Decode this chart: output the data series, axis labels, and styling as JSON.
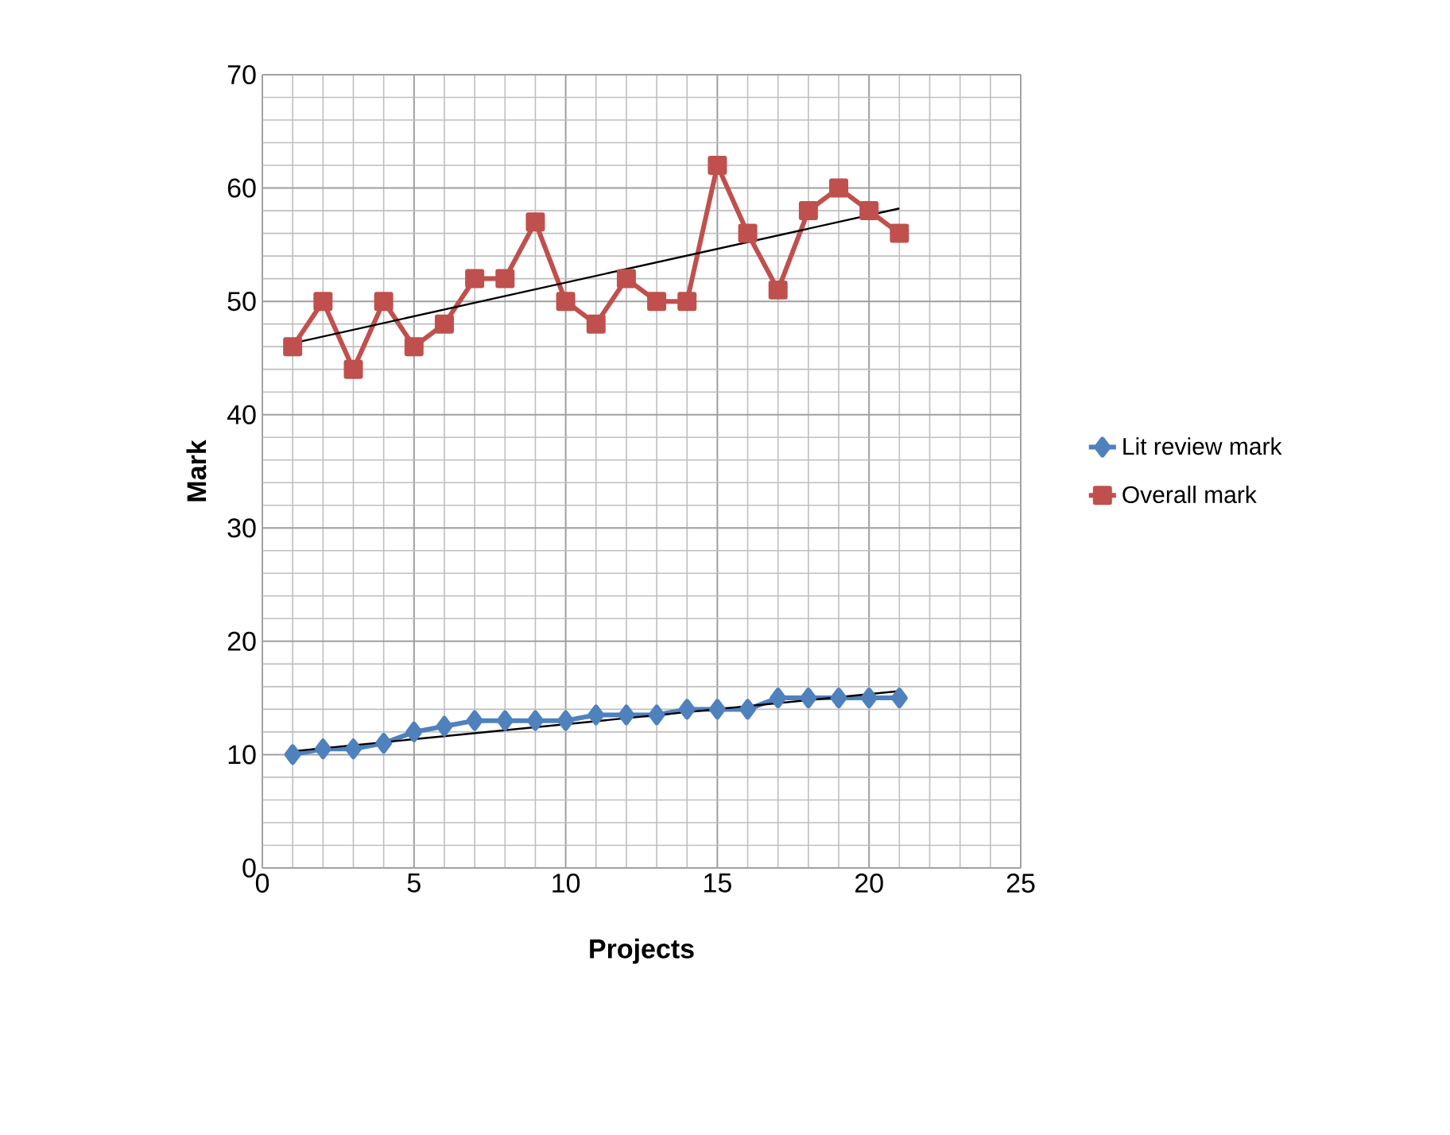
{
  "chart_data": {
    "type": "line",
    "xlabel": "Projects",
    "ylabel": "Mark",
    "xlim": [
      0,
      25
    ],
    "xticks": [
      0,
      5,
      10,
      15,
      20,
      25
    ],
    "ylim": [
      0,
      70
    ],
    "yticks": [
      0,
      10,
      20,
      30,
      40,
      50,
      60,
      70
    ],
    "grid": true,
    "legend": "right",
    "series": [
      {
        "name": "Lit review mark",
        "color": "#4f81bd",
        "marker": "diamond",
        "x": [
          1,
          2,
          3,
          4,
          5,
          6,
          7,
          8,
          9,
          10,
          11,
          12,
          13,
          14,
          15,
          16,
          17,
          18,
          19,
          20,
          21
        ],
        "values": [
          10,
          10.5,
          10.5,
          11,
          12,
          12.5,
          13,
          13,
          13,
          13,
          13.5,
          13.5,
          13.5,
          14,
          14,
          14,
          15,
          15,
          15,
          15,
          15
        ]
      },
      {
        "name": "Overall mark",
        "color": "#c0504d",
        "marker": "square",
        "x": [
          1,
          2,
          3,
          4,
          5,
          6,
          7,
          8,
          9,
          10,
          11,
          12,
          13,
          14,
          15,
          16,
          17,
          18,
          19,
          20,
          21
        ],
        "values": [
          46,
          50,
          44,
          50,
          46,
          48,
          52,
          52,
          57,
          50,
          48,
          52,
          50,
          50,
          62,
          56,
          51,
          58,
          60,
          58,
          56
        ]
      },
      {
        "type": "line",
        "color": "#000000",
        "marker": "none",
        "x": [
          1,
          21
        ],
        "values": [
          10.3,
          15.6
        ]
      },
      {
        "type": "line",
        "color": "#000000",
        "marker": "none",
        "x": [
          1,
          21
        ],
        "values": [
          46.3,
          58.2
        ]
      }
    ]
  }
}
